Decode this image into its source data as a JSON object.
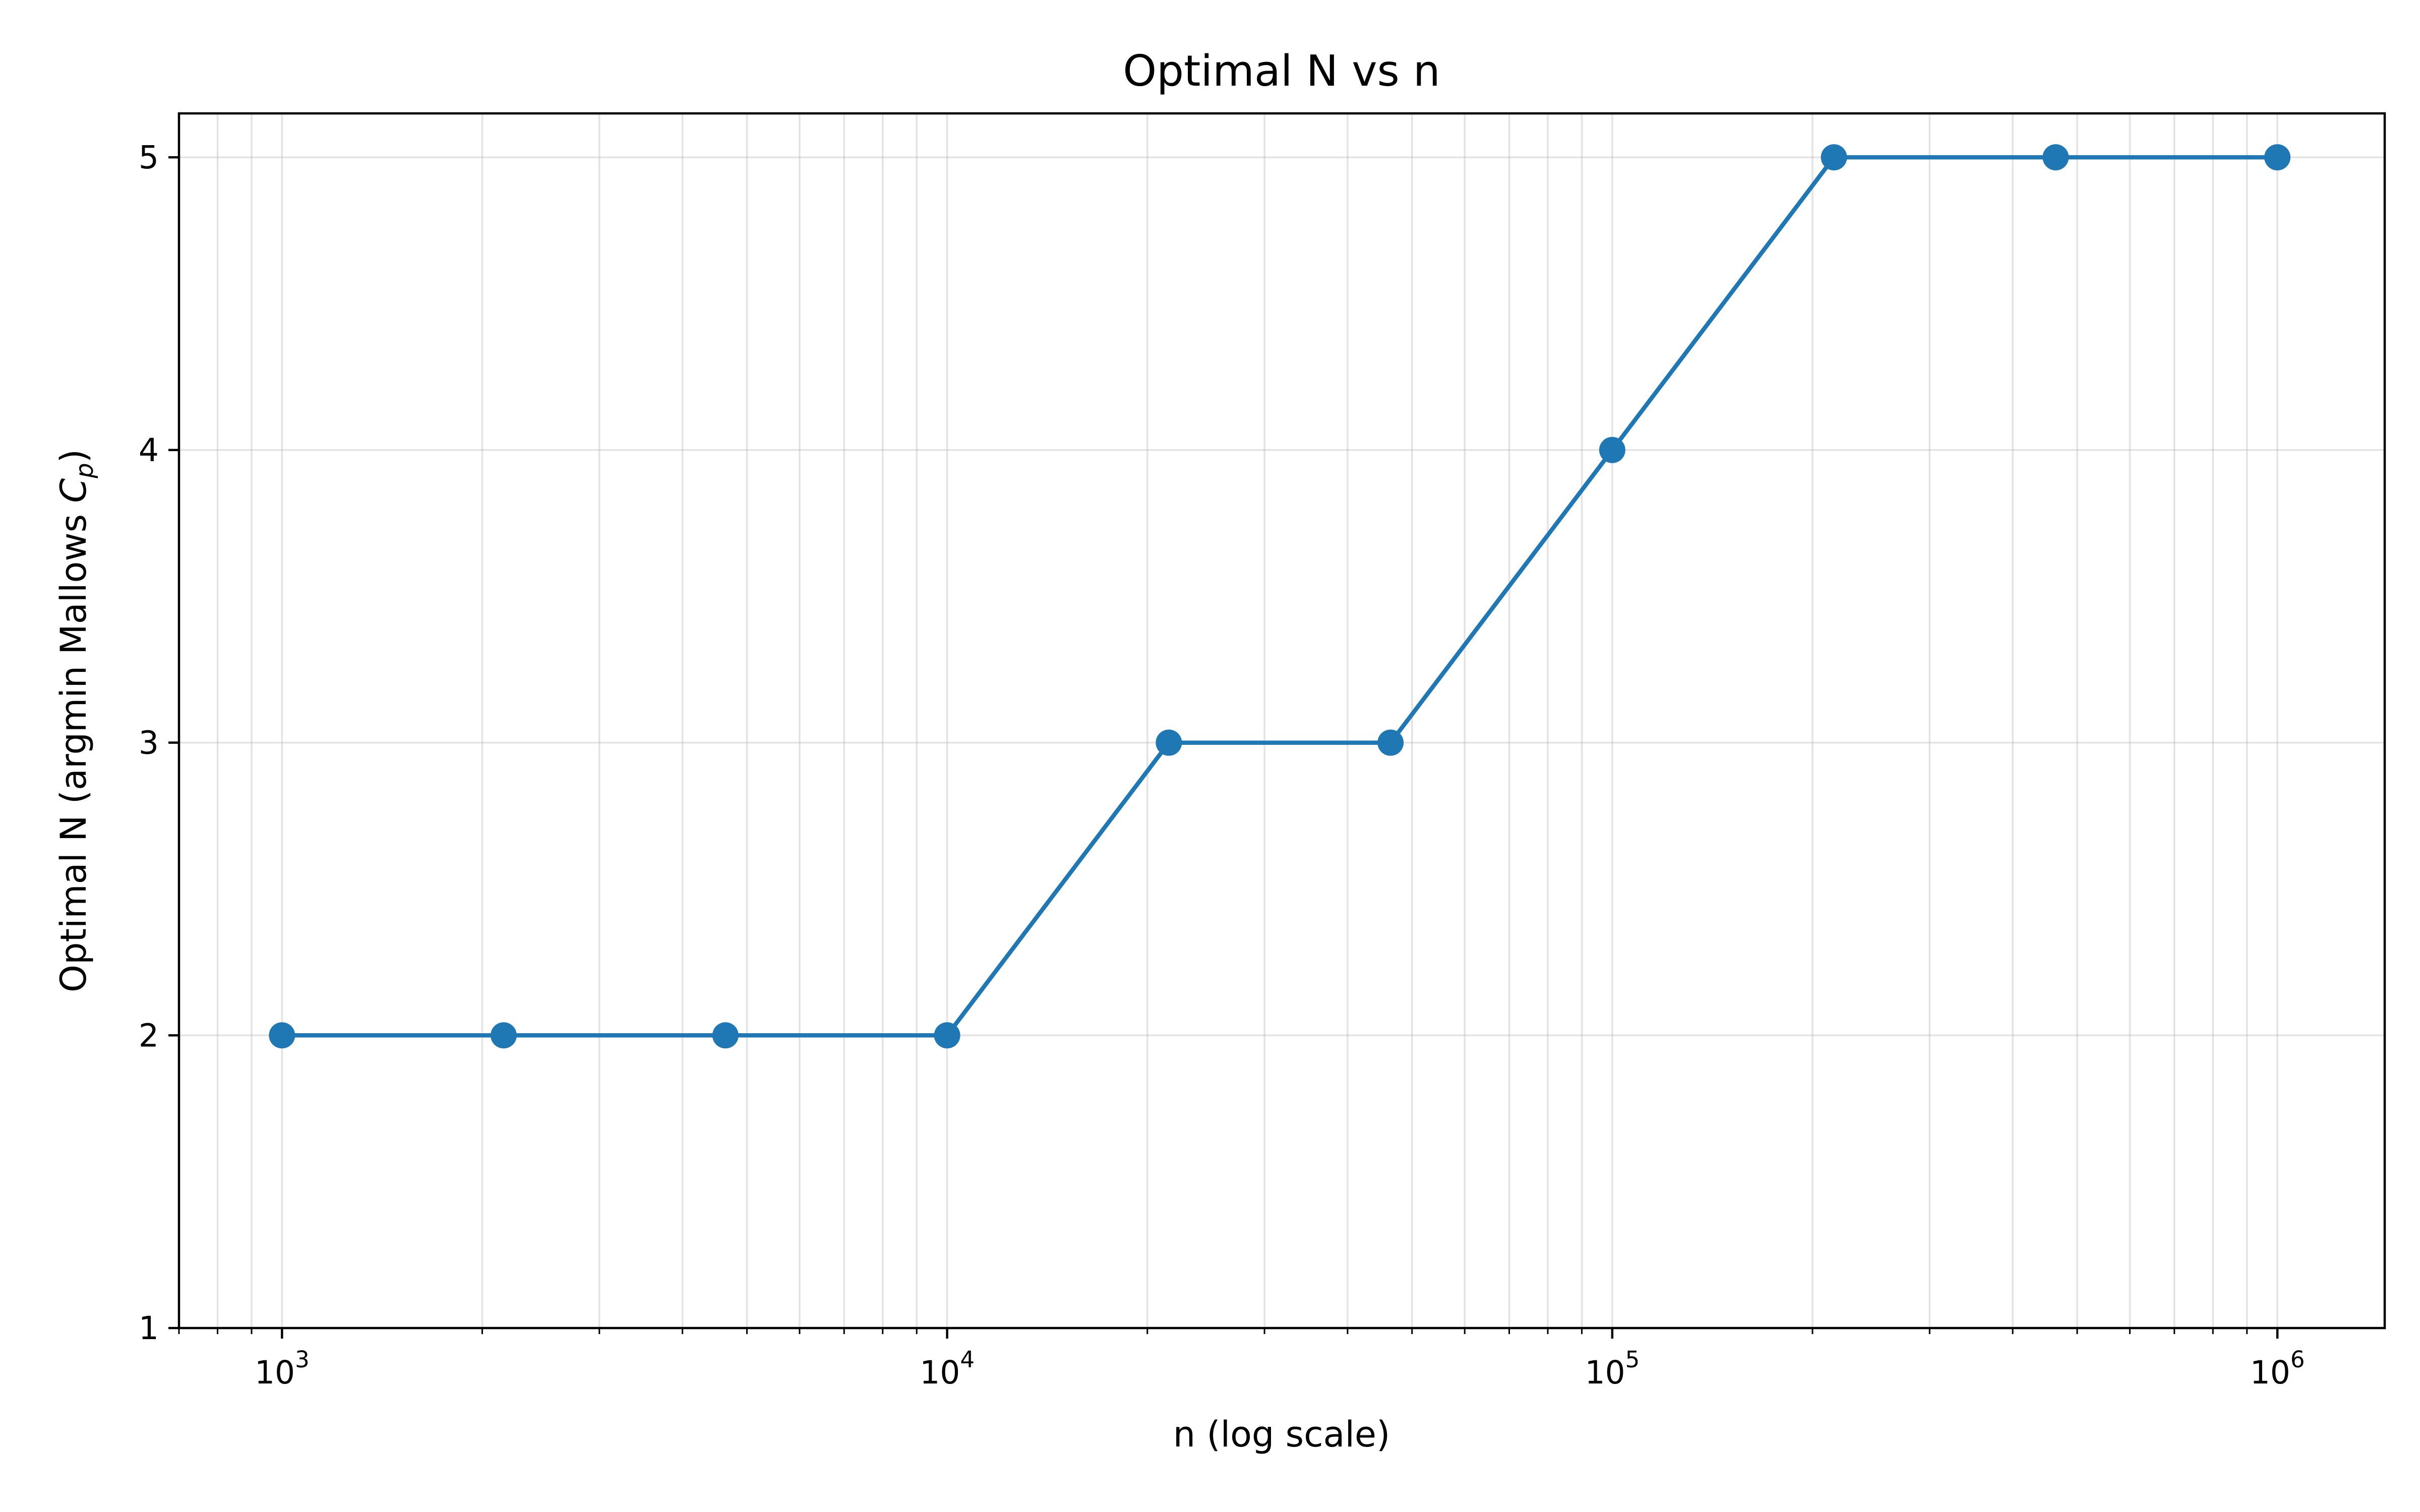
{
  "chart_data": {
    "type": "line",
    "title": "Optimal N vs n",
    "xlabel": "n (log scale)",
    "ylabel": "Optimal N (argmin Mallows C_p)",
    "ylabel_parts": {
      "text": "Optimal N (argmin Mallows ",
      "symbol": "C",
      "subscript": "p",
      "close": ")"
    },
    "x_scale": "log",
    "xlim": [
      700,
      1450000
    ],
    "ylim": [
      1,
      5.15
    ],
    "grid": true,
    "marker": "circle",
    "color": "#1f77b4",
    "x_ticks": [
      {
        "value": 1000,
        "base": "10",
        "exp": "3"
      },
      {
        "value": 10000,
        "base": "10",
        "exp": "4"
      },
      {
        "value": 100000,
        "base": "10",
        "exp": "5"
      },
      {
        "value": 1000000,
        "base": "10",
        "exp": "6"
      }
    ],
    "y_ticks": [
      1,
      2,
      3,
      4,
      5
    ],
    "series": [
      {
        "x": [
          1000,
          2154,
          4642,
          10000,
          21544,
          46416,
          100000,
          215443,
          464159,
          1000000
        ],
        "y": [
          2,
          2,
          2,
          2,
          3,
          3,
          4,
          5,
          5,
          5
        ]
      }
    ]
  }
}
